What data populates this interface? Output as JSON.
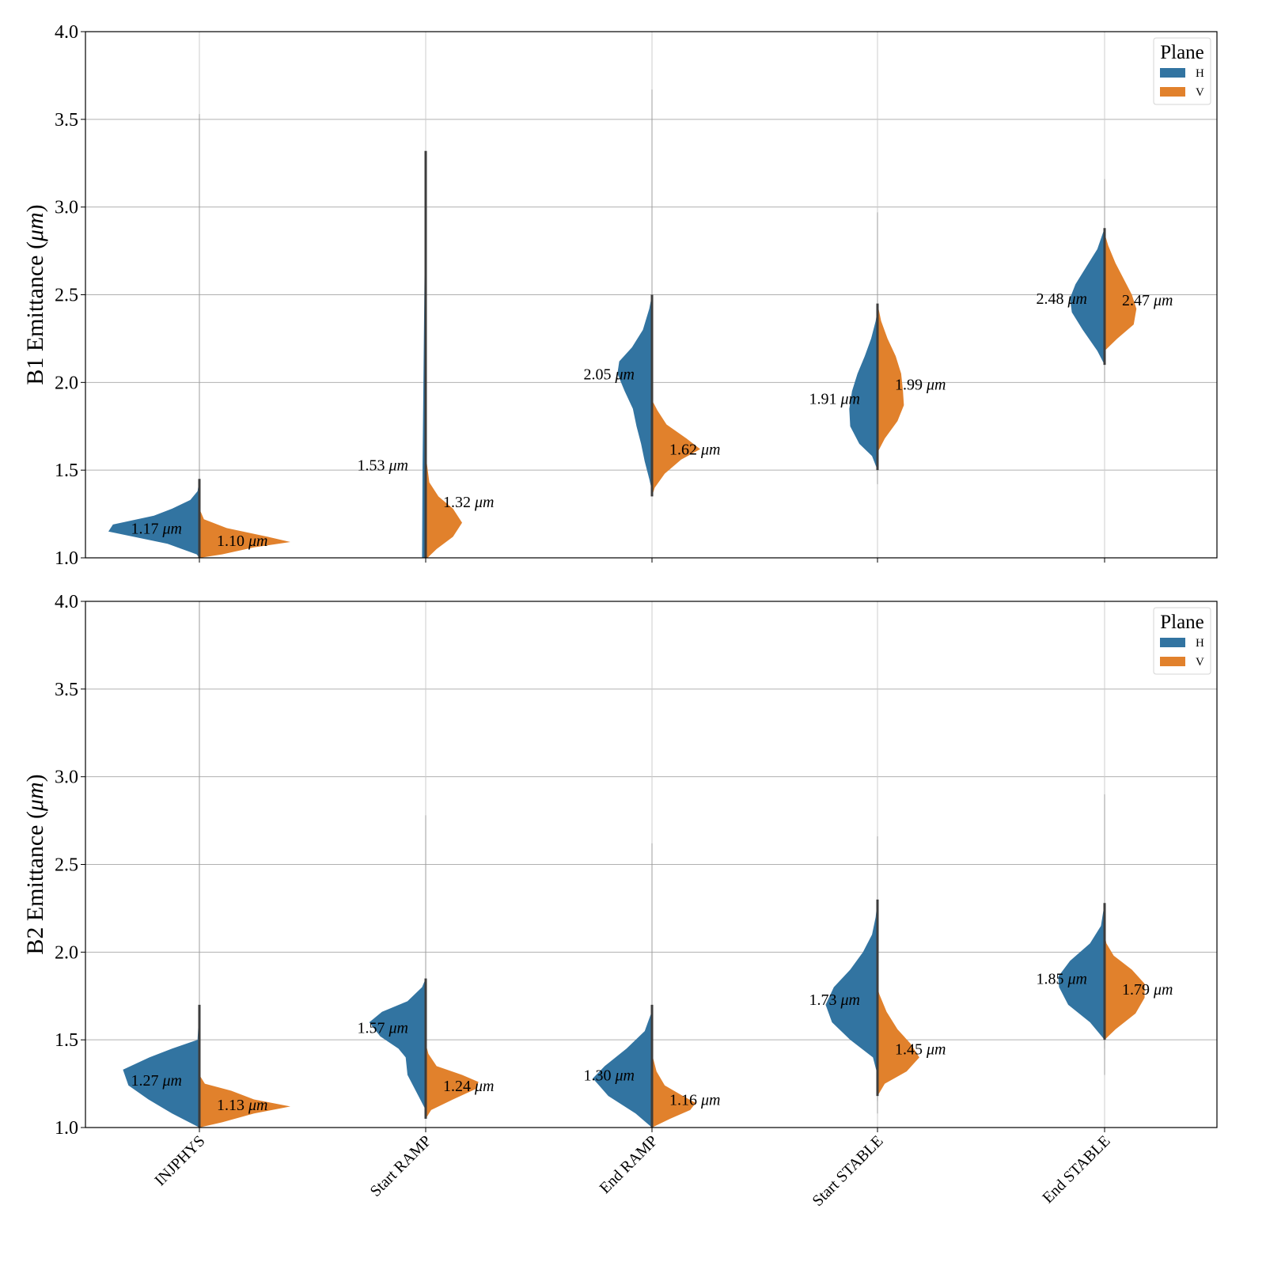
{
  "colors": {
    "H": "#3274a1",
    "V": "#e1812c",
    "median_line": "#3d3d3d",
    "grid": "#b0b0b0"
  },
  "chart_data": [
    {
      "type": "violin",
      "panel": "top",
      "ylabel_main": "B1 Emittance (",
      "ylabel_unit": "μm",
      "ylabel_close": ")",
      "ylim": [
        1.0,
        4.0
      ],
      "yticks": [
        "1.0",
        "1.5",
        "2.0",
        "2.5",
        "3.0",
        "3.5",
        "4.0"
      ],
      "grid": true,
      "legend": {
        "title": "Plane",
        "entries": [
          "H",
          "V"
        ],
        "placement": "top-right"
      },
      "categories": [
        "INJPHYS",
        "Start RAMP",
        "End RAMP",
        "Start STABLE",
        "End STABLE"
      ],
      "series": [
        {
          "name": "H",
          "annotation_values": [
            "1.17",
            "1.53",
            "2.05",
            "1.91",
            "2.48"
          ],
          "annotation_unit": "μm",
          "ranges": [
            [
              1.0,
              3.53
            ],
            [
              1.0,
              3.32
            ],
            [
              1.38,
              3.67
            ],
            [
              1.42,
              2.97
            ],
            [
              2.0,
              3.16
            ]
          ],
          "profiles": [
            [
              [
                1.0,
                0.0
              ],
              [
                1.02,
                0.03
              ],
              [
                1.08,
                0.35
              ],
              [
                1.15,
                1.0
              ],
              [
                1.19,
                0.95
              ],
              [
                1.24,
                0.5
              ],
              [
                1.28,
                0.3
              ],
              [
                1.33,
                0.1
              ],
              [
                1.38,
                0.02
              ],
              [
                1.45,
                0.0
              ]
            ],
            [
              [
                1.0,
                0.04
              ],
              [
                1.5,
                0.035
              ],
              [
                2.0,
                0.025
              ],
              [
                2.5,
                0.015
              ],
              [
                3.0,
                0.006
              ],
              [
                3.32,
                0.0
              ]
            ],
            [
              [
                1.38,
                0.0
              ],
              [
                1.45,
                0.03
              ],
              [
                1.55,
                0.08
              ],
              [
                1.65,
                0.12
              ],
              [
                1.75,
                0.17
              ],
              [
                1.85,
                0.21
              ],
              [
                1.95,
                0.3
              ],
              [
                2.05,
                0.38
              ],
              [
                2.12,
                0.36
              ],
              [
                2.2,
                0.22
              ],
              [
                2.3,
                0.1
              ],
              [
                2.42,
                0.03
              ],
              [
                2.5,
                0.0
              ]
            ],
            [
              [
                1.5,
                0.0
              ],
              [
                1.58,
                0.06
              ],
              [
                1.65,
                0.2
              ],
              [
                1.75,
                0.3
              ],
              [
                1.85,
                0.31
              ],
              [
                1.95,
                0.28
              ],
              [
                2.05,
                0.22
              ],
              [
                2.15,
                0.14
              ],
              [
                2.25,
                0.07
              ],
              [
                2.35,
                0.02
              ],
              [
                2.42,
                0.0
              ]
            ],
            [
              [
                2.1,
                0.0
              ],
              [
                2.18,
                0.08
              ],
              [
                2.3,
                0.24
              ],
              [
                2.4,
                0.36
              ],
              [
                2.48,
                0.38
              ],
              [
                2.56,
                0.32
              ],
              [
                2.66,
                0.2
              ],
              [
                2.76,
                0.08
              ],
              [
                2.88,
                0.0
              ]
            ]
          ]
        },
        {
          "name": "V",
          "annotation_values": [
            "1.10",
            "1.32",
            "1.62",
            "1.99",
            "2.47"
          ],
          "annotation_unit": "μm",
          "ranges": [
            [
              1.0,
              1.3
            ],
            [
              1.0,
              2.35
            ],
            [
              1.35,
              1.9
            ],
            [
              1.55,
              2.45
            ],
            [
              2.18,
              2.85
            ]
          ],
          "profiles": [
            [
              [
                1.0,
                0.0
              ],
              [
                1.02,
                0.25
              ],
              [
                1.06,
                0.6
              ],
              [
                1.09,
                1.0
              ],
              [
                1.12,
                0.75
              ],
              [
                1.17,
                0.3
              ],
              [
                1.22,
                0.05
              ],
              [
                1.28,
                0.0
              ]
            ],
            [
              [
                1.0,
                0.02
              ],
              [
                1.05,
                0.12
              ],
              [
                1.12,
                0.3
              ],
              [
                1.2,
                0.4
              ],
              [
                1.28,
                0.3
              ],
              [
                1.35,
                0.14
              ],
              [
                1.43,
                0.04
              ],
              [
                1.55,
                0.01
              ],
              [
                2.0,
                0.005
              ],
              [
                2.35,
                0.0
              ]
            ],
            [
              [
                1.35,
                0.0
              ],
              [
                1.4,
                0.03
              ],
              [
                1.48,
                0.14
              ],
              [
                1.56,
                0.32
              ],
              [
                1.62,
                0.53
              ],
              [
                1.68,
                0.38
              ],
              [
                1.76,
                0.16
              ],
              [
                1.84,
                0.06
              ],
              [
                1.9,
                0.0
              ]
            ],
            [
              [
                1.6,
                0.0
              ],
              [
                1.68,
                0.08
              ],
              [
                1.78,
                0.22
              ],
              [
                1.87,
                0.29
              ],
              [
                1.95,
                0.28
              ],
              [
                2.05,
                0.26
              ],
              [
                2.15,
                0.2
              ],
              [
                2.25,
                0.11
              ],
              [
                2.35,
                0.04
              ],
              [
                2.45,
                0.0
              ]
            ],
            [
              [
                2.18,
                0.0
              ],
              [
                2.25,
                0.14
              ],
              [
                2.33,
                0.32
              ],
              [
                2.42,
                0.35
              ],
              [
                2.5,
                0.3
              ],
              [
                2.58,
                0.22
              ],
              [
                2.68,
                0.12
              ],
              [
                2.78,
                0.04
              ],
              [
                2.85,
                0.0
              ]
            ]
          ]
        }
      ]
    },
    {
      "type": "violin",
      "panel": "bottom",
      "ylabel_main": "B2 Emittance (",
      "ylabel_unit": "μm",
      "ylabel_close": ")",
      "ylim": [
        1.0,
        4.0
      ],
      "yticks": [
        "1.0",
        "1.5",
        "2.0",
        "2.5",
        "3.0",
        "3.5",
        "4.0"
      ],
      "grid": true,
      "legend": {
        "title": "Plane",
        "entries": [
          "H",
          "V"
        ],
        "placement": "top-right"
      },
      "categories": [
        "INJPHYS",
        "Start RAMP",
        "End RAMP",
        "Start STABLE",
        "End STABLE"
      ],
      "xlabels_shown": true,
      "series": [
        {
          "name": "H",
          "annotation_values": [
            "1.27",
            "1.57",
            "1.30",
            "1.73",
            "1.85"
          ],
          "annotation_unit": "μm",
          "ranges": [
            [
              1.0,
              4.0
            ],
            [
              1.05,
              2.78
            ],
            [
              1.0,
              2.62
            ],
            [
              1.08,
              2.66
            ],
            [
              1.3,
              2.9
            ]
          ],
          "profiles": [
            [
              [
                1.0,
                0.0
              ],
              [
                1.08,
                0.3
              ],
              [
                1.16,
                0.56
              ],
              [
                1.24,
                0.78
              ],
              [
                1.33,
                0.84
              ],
              [
                1.4,
                0.55
              ],
              [
                1.45,
                0.3
              ],
              [
                1.5,
                0.02
              ],
              [
                1.6,
                0.01
              ],
              [
                1.7,
                0.0
              ]
            ],
            [
              [
                1.1,
                0.0
              ],
              [
                1.2,
                0.1
              ],
              [
                1.3,
                0.2
              ],
              [
                1.4,
                0.22
              ],
              [
                1.45,
                0.3
              ],
              [
                1.52,
                0.5
              ],
              [
                1.6,
                0.62
              ],
              [
                1.66,
                0.48
              ],
              [
                1.72,
                0.2
              ],
              [
                1.8,
                0.04
              ],
              [
                1.85,
                0.0
              ]
            ],
            [
              [
                1.0,
                0.0
              ],
              [
                1.08,
                0.18
              ],
              [
                1.18,
                0.48
              ],
              [
                1.28,
                0.65
              ],
              [
                1.35,
                0.52
              ],
              [
                1.45,
                0.28
              ],
              [
                1.55,
                0.08
              ],
              [
                1.65,
                0.01
              ],
              [
                1.7,
                0.0
              ]
            ],
            [
              [
                1.3,
                0.0
              ],
              [
                1.4,
                0.05
              ],
              [
                1.5,
                0.3
              ],
              [
                1.6,
                0.5
              ],
              [
                1.7,
                0.57
              ],
              [
                1.8,
                0.48
              ],
              [
                1.9,
                0.3
              ],
              [
                2.0,
                0.16
              ],
              [
                2.1,
                0.06
              ],
              [
                2.2,
                0.02
              ],
              [
                2.3,
                0.0
              ]
            ],
            [
              [
                1.5,
                0.0
              ],
              [
                1.6,
                0.16
              ],
              [
                1.7,
                0.4
              ],
              [
                1.8,
                0.5
              ],
              [
                1.86,
                0.51
              ],
              [
                1.95,
                0.38
              ],
              [
                2.05,
                0.16
              ],
              [
                2.15,
                0.04
              ],
              [
                2.28,
                0.0
              ]
            ]
          ]
        },
        {
          "name": "V",
          "annotation_values": [
            "1.13",
            "1.24",
            "1.16",
            "1.45",
            "1.79"
          ],
          "annotation_unit": "μm",
          "ranges": [
            [
              1.0,
              1.42
            ],
            [
              1.05,
              1.45
            ],
            [
              1.0,
              1.45
            ],
            [
              1.15,
              1.8
            ],
            [
              1.45,
              2.1
            ]
          ],
          "profiles": [
            [
              [
                1.0,
                0.0
              ],
              [
                1.03,
                0.25
              ],
              [
                1.08,
                0.6
              ],
              [
                1.12,
                1.0
              ],
              [
                1.16,
                0.6
              ],
              [
                1.21,
                0.35
              ],
              [
                1.25,
                0.06
              ],
              [
                1.3,
                0.0
              ]
            ],
            [
              [
                1.05,
                0.0
              ],
              [
                1.1,
                0.06
              ],
              [
                1.16,
                0.3
              ],
              [
                1.22,
                0.55
              ],
              [
                1.26,
                0.58
              ],
              [
                1.3,
                0.4
              ],
              [
                1.35,
                0.12
              ],
              [
                1.42,
                0.03
              ],
              [
                1.48,
                0.0
              ]
            ],
            [
              [
                1.0,
                0.0
              ],
              [
                1.05,
                0.2
              ],
              [
                1.1,
                0.42
              ],
              [
                1.14,
                0.48
              ],
              [
                1.18,
                0.34
              ],
              [
                1.24,
                0.14
              ],
              [
                1.32,
                0.05
              ],
              [
                1.42,
                0.0
              ]
            ],
            [
              [
                1.18,
                0.0
              ],
              [
                1.25,
                0.08
              ],
              [
                1.32,
                0.32
              ],
              [
                1.4,
                0.46
              ],
              [
                1.48,
                0.36
              ],
              [
                1.56,
                0.22
              ],
              [
                1.66,
                0.1
              ],
              [
                1.76,
                0.02
              ],
              [
                1.8,
                0.0
              ]
            ],
            [
              [
                1.5,
                0.0
              ],
              [
                1.56,
                0.12
              ],
              [
                1.65,
                0.34
              ],
              [
                1.74,
                0.44
              ],
              [
                1.82,
                0.44
              ],
              [
                1.9,
                0.3
              ],
              [
                1.98,
                0.1
              ],
              [
                2.05,
                0.02
              ],
              [
                2.1,
                0.0
              ]
            ]
          ]
        }
      ]
    }
  ]
}
